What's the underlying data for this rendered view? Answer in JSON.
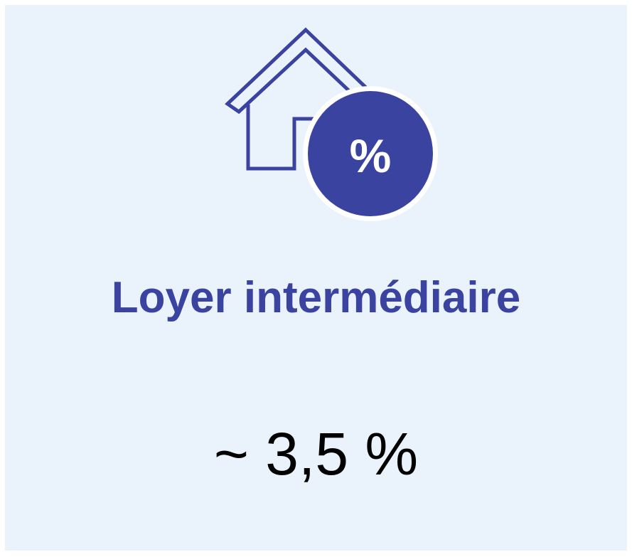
{
  "card": {
    "icon": "house-percent-icon",
    "badge_symbol": "%",
    "title": "Loyer intermédiaire",
    "value": "~ 3,5 %"
  },
  "colors": {
    "accent": "#3b43a0",
    "background": "#eaf3fb",
    "value_text": "#000000"
  }
}
